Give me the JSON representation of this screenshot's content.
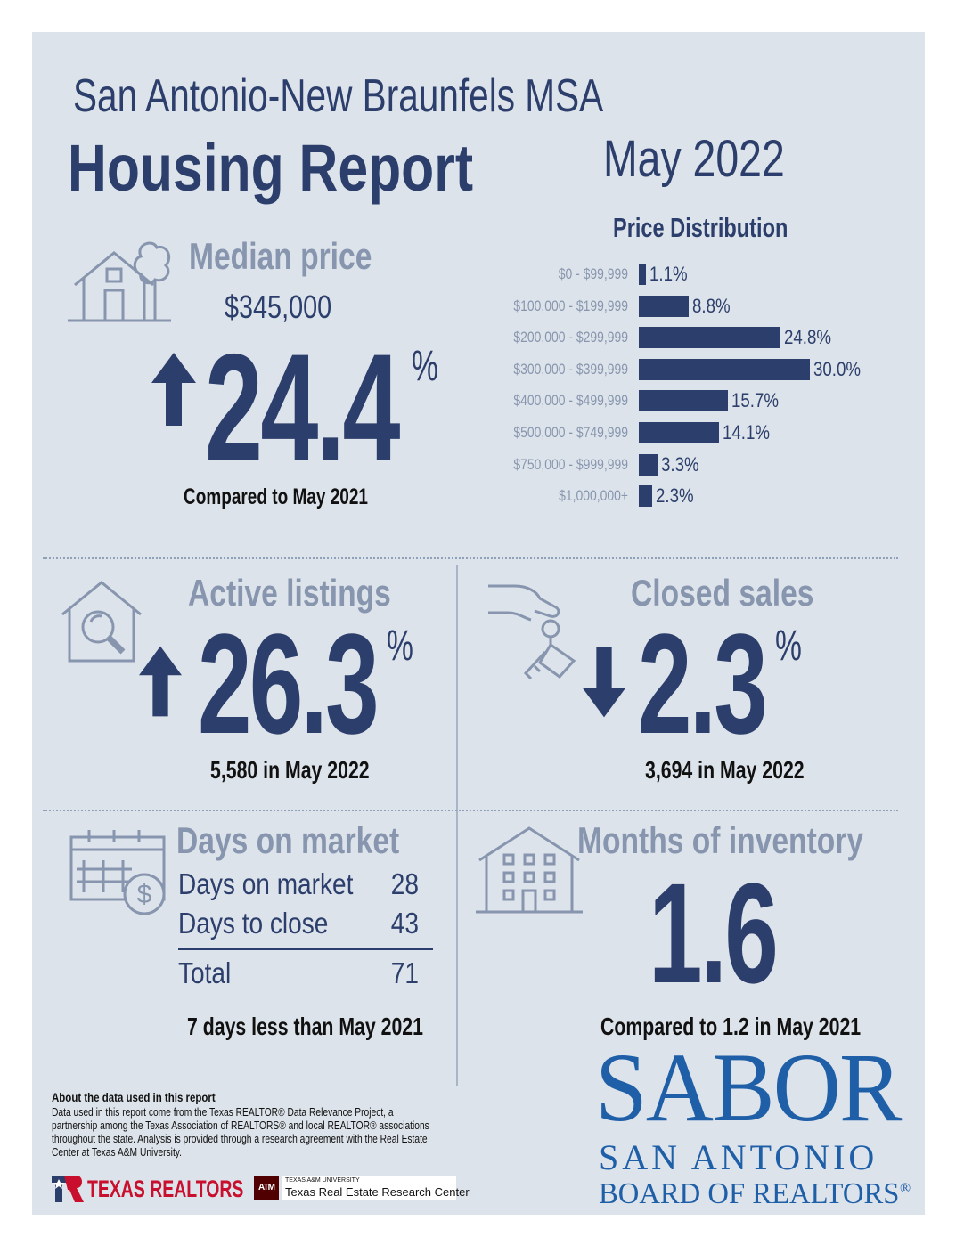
{
  "header": {
    "region": "San Antonio-New Braunfels MSA",
    "title": "Housing Report",
    "period": "May 2022"
  },
  "median_price": {
    "heading": "Median price",
    "price": "$345,000",
    "change": "24.4",
    "unit": "%",
    "direction": "up",
    "note": "Compared to May 2021"
  },
  "chart_data": {
    "type": "bar",
    "title": "Price Distribution",
    "orientation": "horizontal",
    "categories": [
      "$0 - $99,999",
      "$100,000 - $199,999",
      "$200,000 - $299,999",
      "$300,000 - $399,999",
      "$400,000 - $499,999",
      "$500,000 - $749,999",
      "$750,000 - $999,999",
      "$1,000,000+"
    ],
    "values": [
      1.1,
      8.8,
      24.8,
      30.0,
      15.7,
      14.1,
      3.3,
      2.3
    ],
    "value_labels": [
      "1.1%",
      "8.8%",
      "24.8%",
      "30.0%",
      "15.7%",
      "14.1%",
      "3.3%",
      "2.3%"
    ],
    "xlabel": "",
    "ylabel": "",
    "grid": false,
    "color": "#2c3e6b"
  },
  "active_listings": {
    "heading": "Active listings",
    "change": "26.3",
    "unit": "%",
    "direction": "up",
    "note": "5,580 in May 2022"
  },
  "closed_sales": {
    "heading": "Closed sales",
    "change": "2.3",
    "unit": "%",
    "direction": "down",
    "note": "3,694 in May 2022"
  },
  "days_on_market": {
    "heading": "Days on market",
    "rows": [
      {
        "label": "Days on market",
        "value": "28"
      },
      {
        "label": "Days to close",
        "value": "43"
      }
    ],
    "total_label": "Total",
    "total_value": "71",
    "note": "7 days less than May 2021"
  },
  "months_inventory": {
    "heading": "Months of inventory",
    "value": "1.6",
    "note": "Compared to 1.2 in May 2021"
  },
  "about": {
    "heading": "About the data used in this report",
    "body": "Data used in this report come from the Texas REALTOR® Data Relevance Project, a partnership among the Texas Association of REALTORS® and local REALTOR® associations throughout the state. Analysis is provided through a research agreement with the Real Estate Center at Texas A&M University."
  },
  "footer": {
    "texas_realtors": "TEXAS REALTORS",
    "tamu_small": "TEXAS A&M UNIVERSITY",
    "tamu_center": "Texas Real Estate Research Center",
    "tamu_mark": "ATM",
    "sabor_logo": "SABOR",
    "sabor_line1": "SAN ANTONIO",
    "sabor_line2": "BOARD OF REALTORS",
    "sabor_reg": "®"
  },
  "colors": {
    "navy": "#2c3e6b",
    "grey_blue": "#8796ae",
    "background": "#dde3ea",
    "sabor_blue": "#1f5fa8",
    "tamu_maroon": "#500000",
    "texas_red": "#c8102e"
  }
}
